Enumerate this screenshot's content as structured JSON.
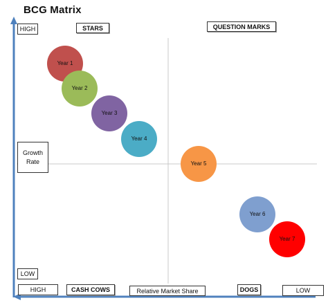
{
  "title": "BCG Matrix",
  "quadrants": {
    "top_left": "STARS",
    "top_right": "QUESTION MARKS",
    "bottom_left": "CASH COWS",
    "bottom_right": "DOGS"
  },
  "y_axis": {
    "label": "Growth Rate",
    "high": "HIGH",
    "low": "LOW"
  },
  "x_axis": {
    "label": "Relative Market Share",
    "high": "HIGH",
    "low": "LOW"
  },
  "bubbles": [
    {
      "label": "Year 1",
      "color": "#c0504d"
    },
    {
      "label": "Year 2",
      "color": "#9bbb59"
    },
    {
      "label": "Year 3",
      "color": "#8064a2"
    },
    {
      "label": "Year 4",
      "color": "#4bacc6"
    },
    {
      "label": "Year 5",
      "color": "#f79646"
    },
    {
      "label": "Year 6",
      "color": "#7f9fcf"
    },
    {
      "label": "Year 7",
      "color": "#ff0000"
    }
  ],
  "colors": {
    "axis": "#4f81bd",
    "divider": "#c8c8c8"
  }
}
